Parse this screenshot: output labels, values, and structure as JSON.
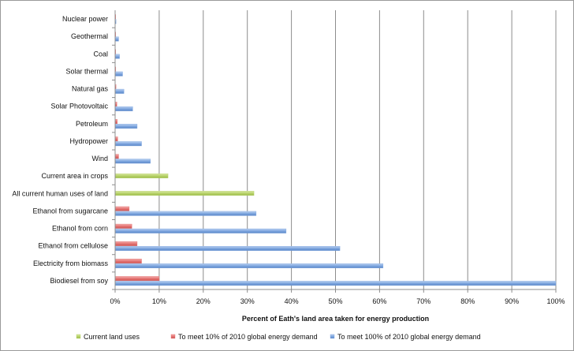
{
  "chart_data": {
    "type": "bar",
    "orientation": "horizontal",
    "title": "",
    "xlabel": "Percent of Eath's land area taken for energy production",
    "ylabel": "",
    "xlim": [
      0,
      100
    ],
    "grid": true,
    "legend_position": "bottom",
    "ticks": [
      "0%",
      "10%",
      "20%",
      "30%",
      "40%",
      "50%",
      "60%",
      "70%",
      "80%",
      "90%",
      "100%"
    ],
    "categories": [
      "Biodiesel from soy",
      "Electricity from biomass",
      "Ethanol from cellulose",
      "Ethanol from corn",
      "Ethanol from sugarcane",
      "All current human uses of land",
      "Current area in crops",
      "Wind",
      "Hydropower",
      "Petroleum",
      "Solar Photovoltaic",
      "Natural gas",
      "Solar thermal",
      "Coal",
      "Geothermal",
      "Nuclear power"
    ],
    "series": [
      {
        "name": "Current land uses",
        "color": "#b8d36a",
        "values": [
          null,
          null,
          null,
          null,
          null,
          31.5,
          12,
          null,
          null,
          null,
          null,
          null,
          null,
          null,
          null,
          null
        ]
      },
      {
        "name": "To meet 10% of 2010 global energy demand",
        "color": "#e57373",
        "values": [
          10,
          6,
          5,
          3.8,
          3.2,
          null,
          null,
          0.8,
          0.6,
          0.5,
          0.4,
          0.2,
          0.15,
          0.1,
          0.08,
          0.02
        ]
      },
      {
        "name": "To meet 100% of 2010 global energy demand",
        "color": "#7fa7e0",
        "values": [
          100,
          60.8,
          51,
          38.8,
          32,
          null,
          null,
          8,
          6,
          5,
          4,
          2,
          1.7,
          1,
          0.8,
          0.2
        ]
      }
    ]
  }
}
